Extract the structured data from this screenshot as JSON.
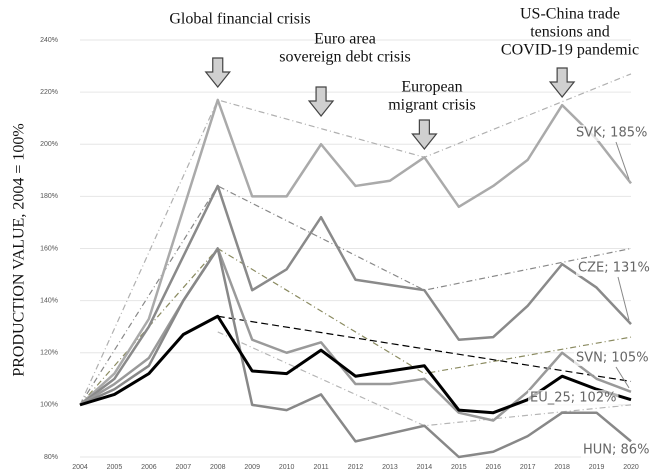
{
  "chart_data": {
    "type": "line",
    "ylabel": "PRODUCTION VALUE, 2004 = 100%",
    "x": [
      2004,
      2005,
      2006,
      2007,
      2008,
      2009,
      2010,
      2011,
      2012,
      2013,
      2014,
      2015,
      2016,
      2017,
      2018,
      2019,
      2020
    ],
    "xlim": [
      2004,
      2020
    ],
    "ylim": [
      80,
      240
    ],
    "yticks": [
      {
        "value": 80,
        "label": "80%"
      },
      {
        "value": 100,
        "label": "100%"
      },
      {
        "value": 120,
        "label": "120%"
      },
      {
        "value": 140,
        "label": "140%"
      },
      {
        "value": 160,
        "label": "160%"
      },
      {
        "value": 180,
        "label": "180%"
      },
      {
        "value": 200,
        "label": "200%"
      },
      {
        "value": 220,
        "label": "220%"
      },
      {
        "value": 240,
        "label": "240%"
      }
    ],
    "series": [
      {
        "name": "SVK",
        "color": "#aaaaaa",
        "width": 2.5,
        "end_label": "SVK; 185%",
        "values": [
          100,
          112,
          133,
          175,
          217,
          180,
          180,
          200,
          184,
          186,
          195,
          176,
          184,
          194,
          215,
          202,
          185
        ]
      },
      {
        "name": "CZE",
        "color": "#8a8a8a",
        "width": 2.5,
        "end_label": "CZE; 131%",
        "values": [
          100,
          110,
          130,
          157,
          184,
          144,
          152,
          172,
          148,
          146,
          144,
          125,
          126,
          138,
          154,
          145,
          131
        ]
      },
      {
        "name": "SVN",
        "color": "#9a9a9a",
        "width": 2.5,
        "end_label": "SVN; 105%",
        "values": [
          100,
          108,
          118,
          140,
          160,
          125,
          120,
          124,
          108,
          108,
          110,
          97,
          94,
          105,
          120,
          110,
          105
        ]
      },
      {
        "name": "HUN",
        "color": "#888888",
        "width": 2.5,
        "end_label": "HUN; 86%",
        "values": [
          100,
          106,
          115,
          140,
          160,
          100,
          98,
          104,
          86,
          89,
          92,
          80,
          82,
          88,
          97,
          97,
          86
        ]
      },
      {
        "name": "EU_25",
        "color": "#000000",
        "width": 3,
        "end_label": "EU_25; 102%",
        "values": [
          100,
          104,
          112,
          127,
          134,
          113,
          112,
          121,
          111,
          113,
          115,
          98,
          97,
          102,
          111,
          106,
          102
        ]
      }
    ],
    "trend_lines": [
      {
        "color": "#b0b0b0",
        "dash": "6 3 1 3",
        "x": [
          2004,
          2008,
          2014,
          2020
        ],
        "values": [
          100,
          217,
          195,
          227
        ]
      },
      {
        "color": "#888888",
        "dash": "6 3 1 3",
        "x": [
          2004,
          2008,
          2014,
          2020
        ],
        "values": [
          100,
          184,
          144,
          160
        ]
      },
      {
        "color": "#8a8a60",
        "dash": "6 3 1 3",
        "x": [
          2004,
          2008,
          2014,
          2020
        ],
        "values": [
          100,
          160,
          112,
          126
        ]
      },
      {
        "color": "#b5b5b5",
        "dash": "6 3 1 3",
        "x": [
          2008,
          2014,
          2020
        ],
        "values": [
          128,
          92,
          100
        ]
      },
      {
        "color": "#000000",
        "dash": "7 4",
        "x": [
          2008,
          2020
        ],
        "values": [
          134,
          109
        ]
      }
    ],
    "events": [
      {
        "x": 2008,
        "lines": [
          "Global financial crisis"
        ]
      },
      {
        "x": 2011,
        "lines": [
          "Euro area",
          "sovereign debt crisis"
        ]
      },
      {
        "x": 2014,
        "lines": [
          "European",
          "migrant crisis"
        ]
      },
      {
        "x": 2018,
        "lines": [
          "US-China trade",
          "tensions and",
          "COVID-19 pandemic"
        ]
      }
    ]
  }
}
